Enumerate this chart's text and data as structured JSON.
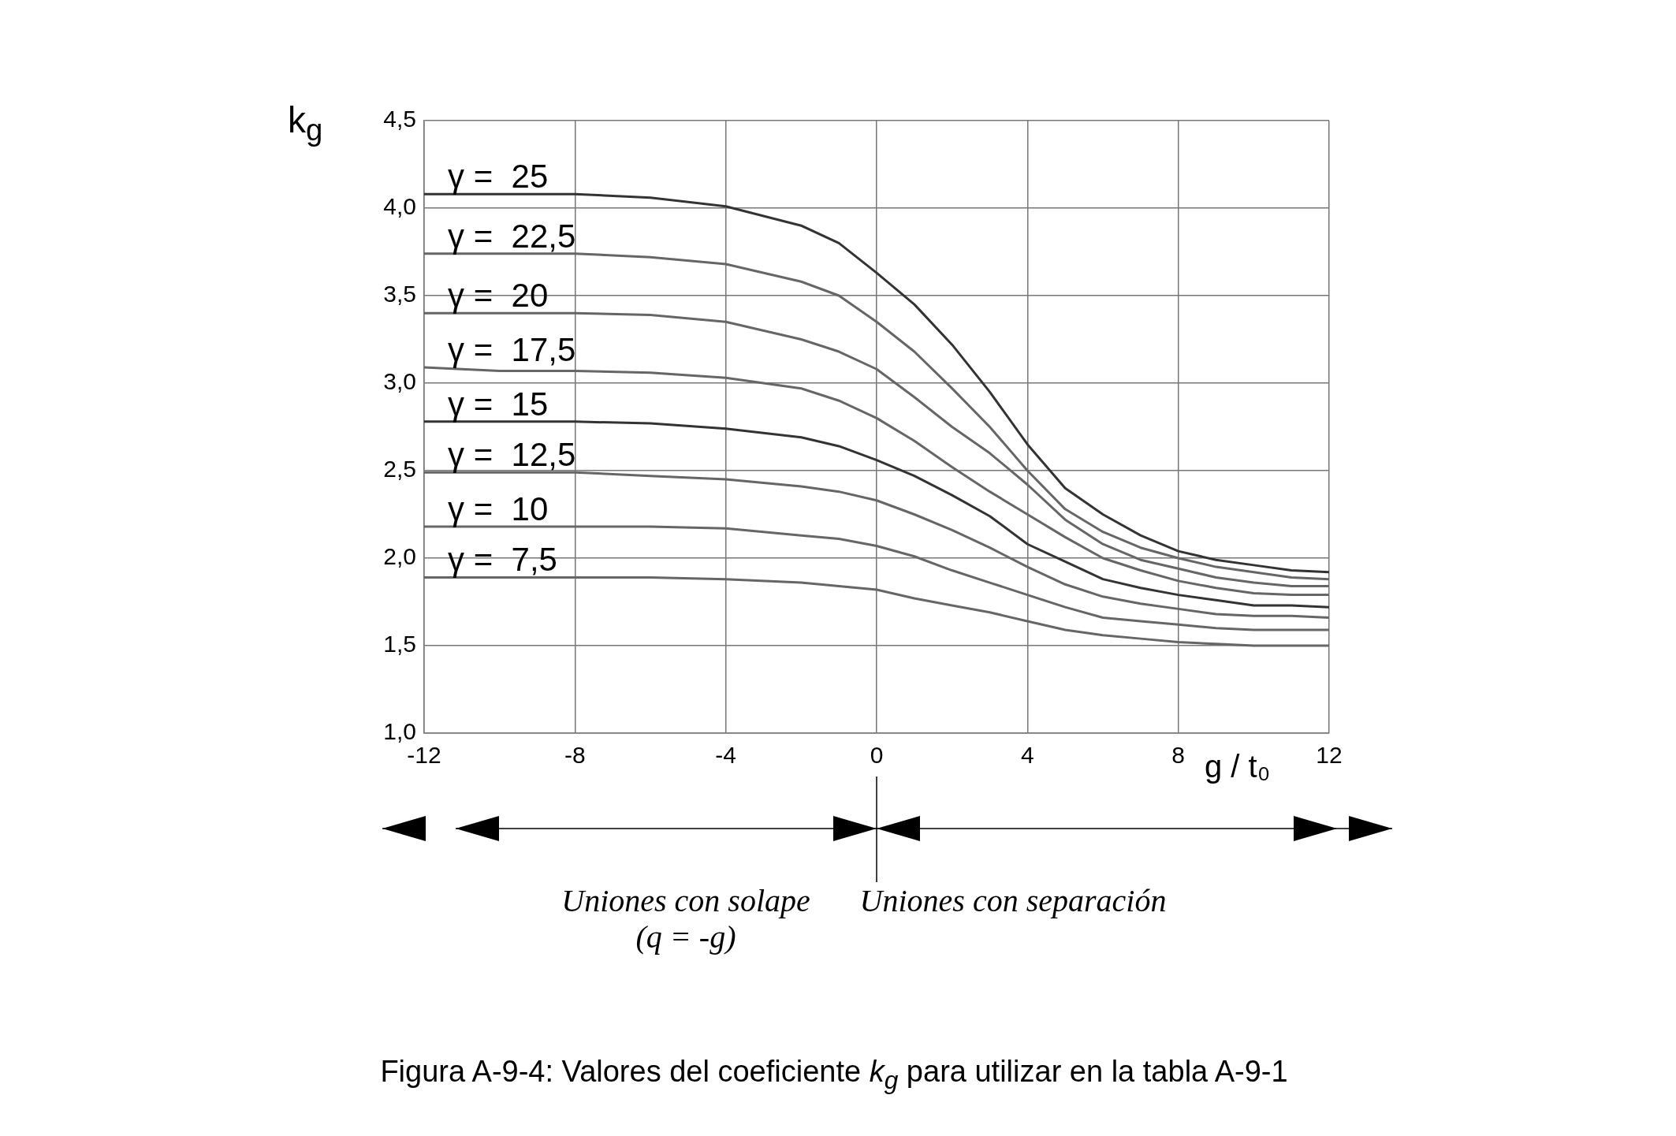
{
  "chart_data": {
    "type": "line",
    "xlabel": "g / t₀",
    "ylabel": "k$_{g}$",
    "x": [
      -12,
      -10,
      -8,
      -6,
      -4,
      -2,
      -1,
      0,
      1,
      2,
      3,
      4,
      5,
      6,
      7,
      8,
      9,
      10,
      11,
      12
    ],
    "series": [
      {
        "name": "γ =  25",
        "color": "#333333",
        "values": [
          4.08,
          4.08,
          4.08,
          4.06,
          4.01,
          3.9,
          3.8,
          3.63,
          3.45,
          3.22,
          2.95,
          2.65,
          2.4,
          2.25,
          2.13,
          2.04,
          1.99,
          1.96,
          1.93,
          1.92
        ]
      },
      {
        "name": "γ =  22,5",
        "color": "#666666",
        "values": [
          3.74,
          3.74,
          3.74,
          3.72,
          3.68,
          3.58,
          3.5,
          3.35,
          3.18,
          2.97,
          2.75,
          2.5,
          2.28,
          2.15,
          2.06,
          2.0,
          1.95,
          1.92,
          1.89,
          1.88
        ]
      },
      {
        "name": "γ =  20",
        "color": "#666666",
        "values": [
          3.4,
          3.4,
          3.4,
          3.39,
          3.35,
          3.25,
          3.18,
          3.08,
          2.92,
          2.75,
          2.6,
          2.42,
          2.22,
          2.08,
          1.99,
          1.94,
          1.89,
          1.86,
          1.84,
          1.84
        ]
      },
      {
        "name": "γ =  17,5",
        "color": "#666666",
        "values": [
          3.09,
          3.07,
          3.07,
          3.06,
          3.03,
          2.97,
          2.9,
          2.8,
          2.67,
          2.52,
          2.38,
          2.25,
          2.12,
          2.0,
          1.93,
          1.87,
          1.83,
          1.8,
          1.79,
          1.79
        ]
      },
      {
        "name": "γ =  15",
        "color": "#333333",
        "values": [
          2.78,
          2.78,
          2.78,
          2.77,
          2.74,
          2.69,
          2.64,
          2.56,
          2.47,
          2.36,
          2.24,
          2.08,
          1.98,
          1.88,
          1.83,
          1.79,
          1.76,
          1.73,
          1.73,
          1.72
        ]
      },
      {
        "name": "γ =  12,5",
        "color": "#666666",
        "values": [
          2.49,
          2.49,
          2.49,
          2.47,
          2.45,
          2.41,
          2.38,
          2.33,
          2.25,
          2.16,
          2.06,
          1.95,
          1.85,
          1.78,
          1.74,
          1.71,
          1.68,
          1.67,
          1.67,
          1.66
        ]
      },
      {
        "name": "γ =  10",
        "color": "#666666",
        "values": [
          2.18,
          2.18,
          2.18,
          2.18,
          2.17,
          2.13,
          2.11,
          2.07,
          2.01,
          1.93,
          1.86,
          1.79,
          1.72,
          1.66,
          1.64,
          1.62,
          1.6,
          1.59,
          1.59,
          1.59
        ]
      },
      {
        "name": "γ =  7,5",
        "color": "#666666",
        "values": [
          1.89,
          1.89,
          1.89,
          1.89,
          1.88,
          1.86,
          1.84,
          1.82,
          1.77,
          1.73,
          1.69,
          1.64,
          1.59,
          1.56,
          1.54,
          1.52,
          1.51,
          1.5,
          1.5,
          1.5
        ]
      }
    ],
    "xlim": [
      -12,
      12
    ],
    "xticks": [
      -12,
      -8,
      -4,
      0,
      4,
      8,
      12
    ],
    "ylim": [
      1,
      4.5
    ],
    "yticks": [
      {
        "value": 1,
        "label": "1,0"
      },
      {
        "value": 1.5,
        "label": "1,5"
      },
      {
        "value": 2,
        "label": "2,0"
      },
      {
        "value": 2.5,
        "label": "2,5"
      },
      {
        "value": 3,
        "label": "3,0"
      },
      {
        "value": 3.5,
        "label": "3,5"
      },
      {
        "value": 4,
        "label": "4,0"
      },
      {
        "value": 4.5,
        "label": "4,5"
      }
    ],
    "grid": true,
    "legend": false,
    "marker": "none",
    "line_style": "solid",
    "annotations": [
      "Uniones con solape\n(q = -g)",
      "Uniones con separación",
      "Figura A-9-4: Valores del coeficiente k$_{g}$ para utilizar en la tabla A-9-1"
    ]
  }
}
